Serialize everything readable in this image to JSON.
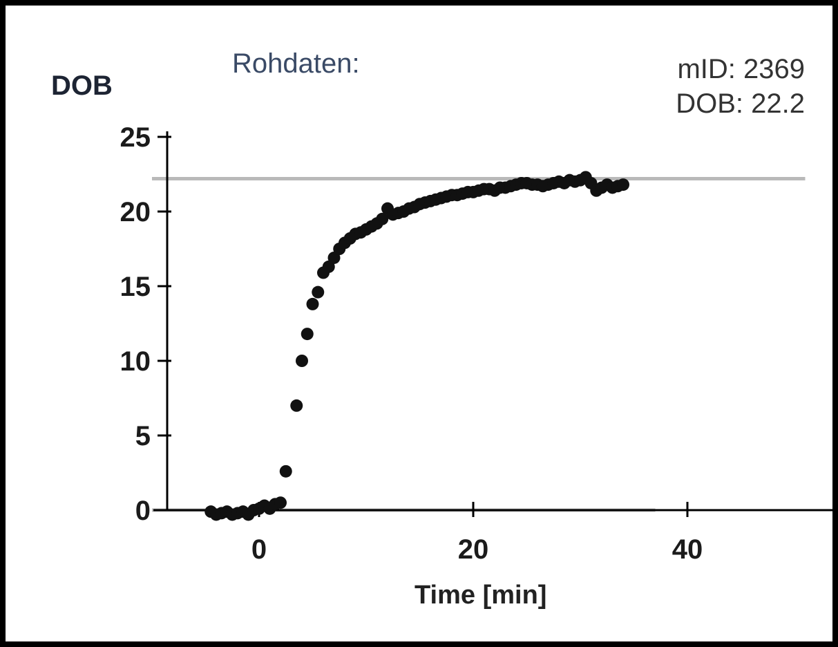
{
  "chart_data": {
    "type": "scatter",
    "title": "Rohdaten:",
    "ylabel": "DOB",
    "xlabel": "Time [min]",
    "xlim": [
      -10,
      53
    ],
    "ylim": [
      0,
      25
    ],
    "x_ticks": [
      0,
      20,
      40
    ],
    "y_ticks": [
      0,
      5,
      10,
      15,
      20,
      25
    ],
    "info": {
      "mid_text": "mID: 2369",
      "dob_text": "DOB: 22.2"
    },
    "reference_lines": [
      {
        "y": 22.2,
        "x_from": -10,
        "x_to": 51
      },
      {
        "y": 0,
        "x_from": -10,
        "x_to": 37
      }
    ],
    "colors": {
      "points": "#111111",
      "axes": "#000000",
      "reference": "#b9b9b9"
    },
    "series": [
      {
        "x": [
          -4.5,
          -4.0,
          -3.5,
          -3.0,
          -2.5,
          -2.0,
          -1.5,
          -1.0,
          -0.5,
          0.0,
          0.5,
          1.0,
          1.5,
          2.0,
          2.5,
          3.5,
          4.0,
          4.5,
          5.0,
          5.5,
          6.0,
          6.5,
          7.0,
          7.5,
          8.0,
          8.5,
          9.0,
          9.5,
          10.0,
          10.5,
          11.0,
          11.5,
          12.0,
          12.5,
          13.0,
          13.5,
          14.0,
          14.5,
          15.0,
          15.5,
          16.0,
          16.5,
          17.0,
          17.5,
          18.0,
          18.5,
          19.0,
          19.5,
          20.0,
          20.5,
          21.0,
          21.5,
          22.0,
          22.5,
          23.0,
          23.5,
          24.0,
          24.5,
          25.0,
          25.5,
          26.0,
          26.5,
          27.0,
          27.5,
          28.0,
          28.5,
          29.0,
          29.5,
          30.0,
          30.5,
          31.0,
          31.5,
          32.0,
          32.5,
          33.0,
          33.5,
          34.0
        ],
        "y": [
          -0.1,
          -0.3,
          -0.2,
          -0.1,
          -0.3,
          -0.2,
          -0.1,
          -0.3,
          0.0,
          0.1,
          0.3,
          0.1,
          0.4,
          0.5,
          2.6,
          7.0,
          10.0,
          11.8,
          13.8,
          14.6,
          15.9,
          16.3,
          16.9,
          17.5,
          17.9,
          18.2,
          18.5,
          18.6,
          18.8,
          19.0,
          19.2,
          19.5,
          20.2,
          19.8,
          19.9,
          20.0,
          20.2,
          20.3,
          20.5,
          20.6,
          20.7,
          20.8,
          20.9,
          21.0,
          21.1,
          21.1,
          21.2,
          21.3,
          21.3,
          21.4,
          21.5,
          21.5,
          21.4,
          21.6,
          21.6,
          21.7,
          21.8,
          21.9,
          21.9,
          21.8,
          21.8,
          21.7,
          21.8,
          21.9,
          22.0,
          21.9,
          22.1,
          22.0,
          22.1,
          22.3,
          21.9,
          21.4,
          21.6,
          21.8,
          21.6,
          21.7,
          21.8
        ]
      }
    ]
  }
}
